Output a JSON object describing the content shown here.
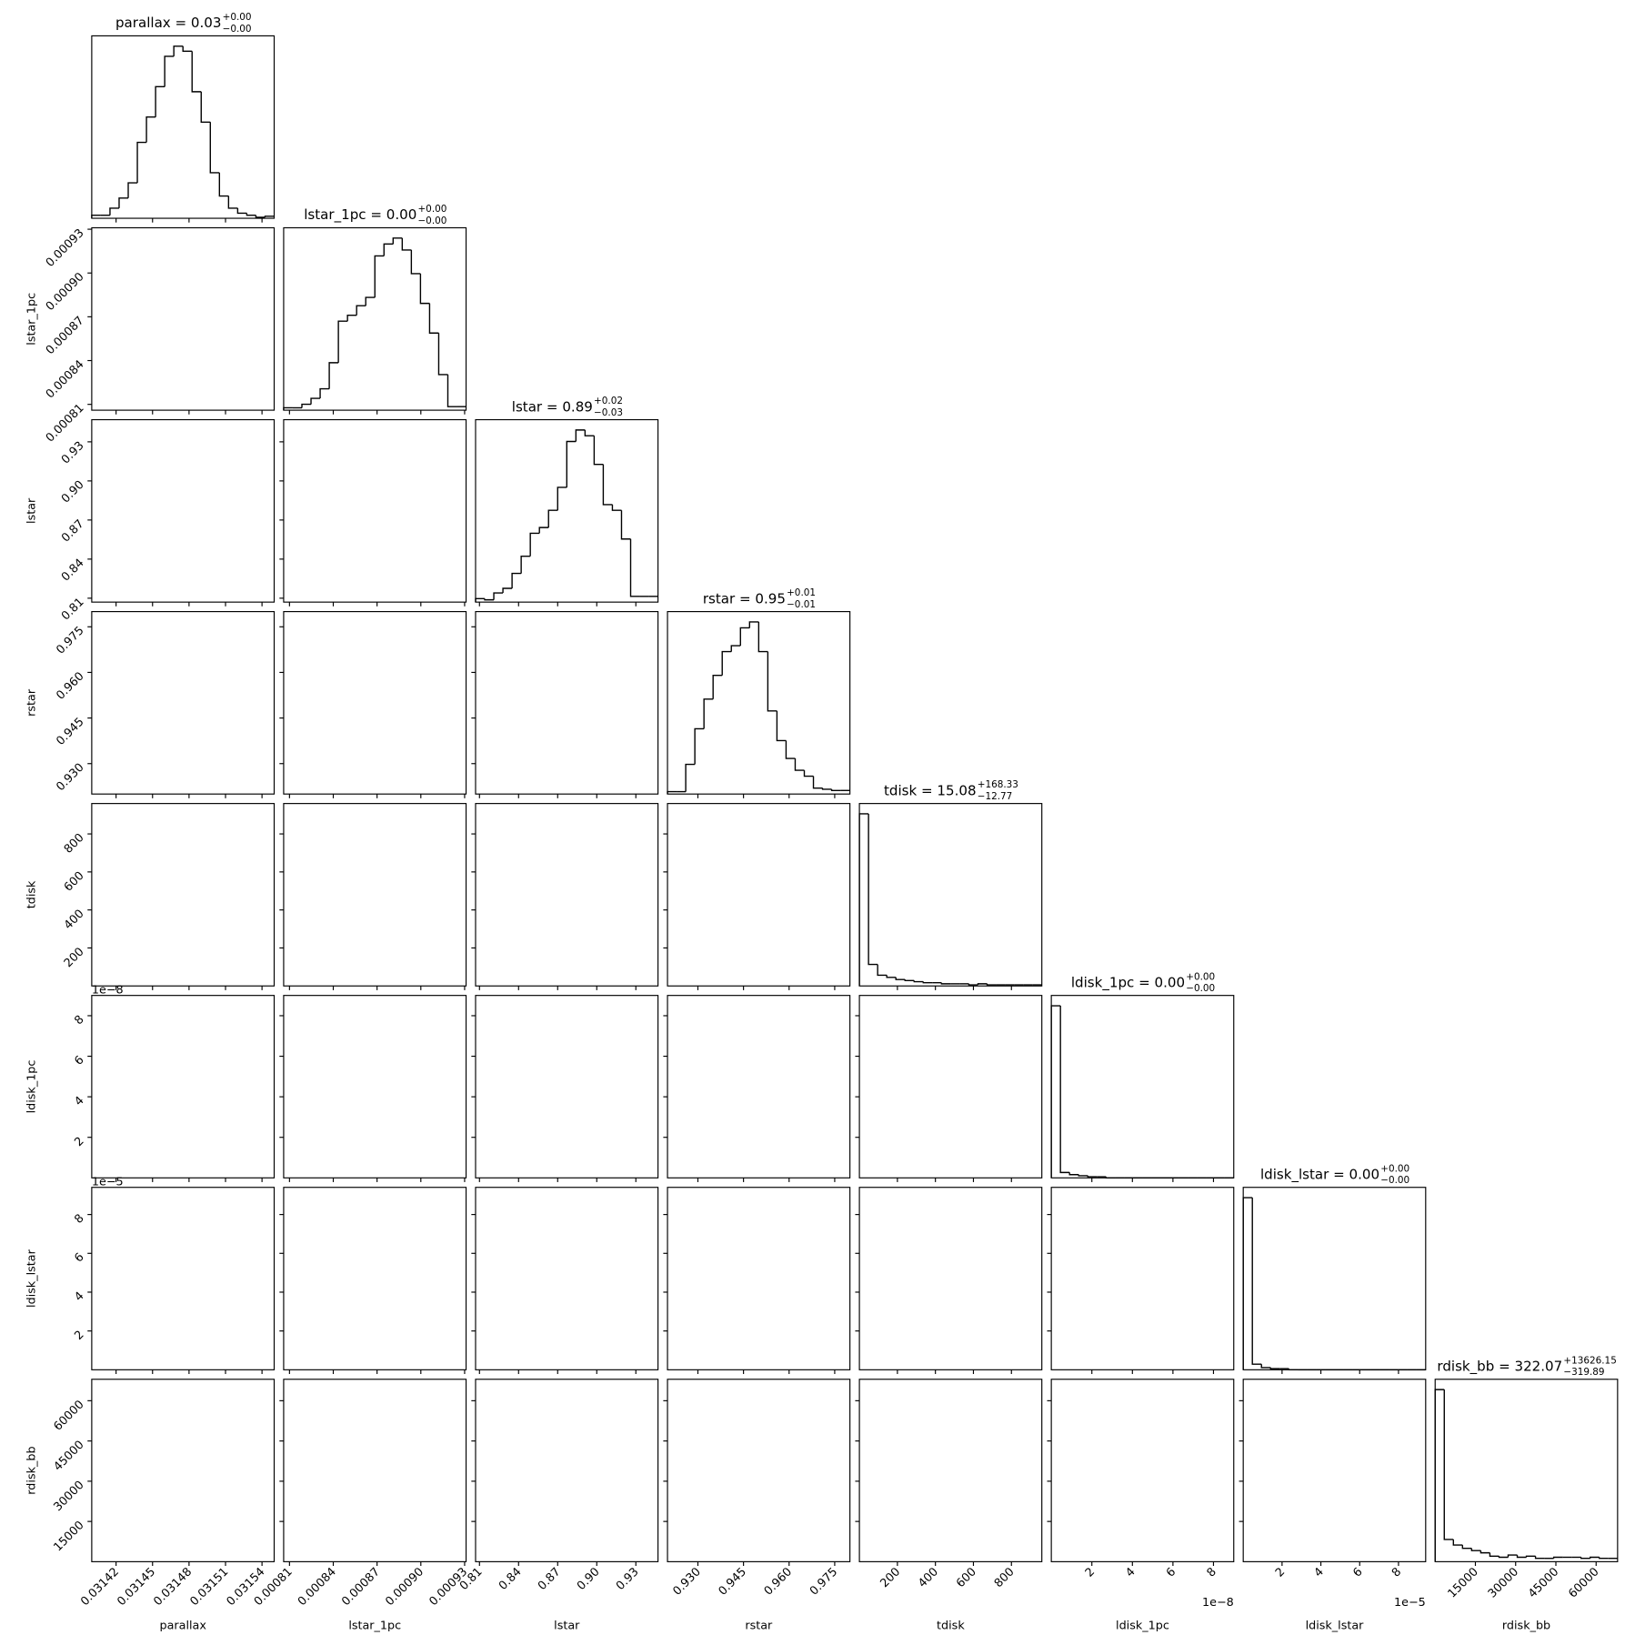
{
  "chart_data": {
    "type": "corner",
    "params": [
      {
        "name": "parallax",
        "title": "parallax = 0.03",
        "title_upper": "+0.00",
        "title_lower": "−0.00",
        "xlim": [
          0.0314,
          0.03155
        ],
        "xticks": [
          0.03142,
          0.03145,
          0.03148,
          0.03151,
          0.03154
        ],
        "bins": [
          0.0314,
          0.0314075,
          0.031415,
          0.0314225,
          0.03143,
          0.0314375,
          0.031445,
          0.0314525,
          0.03146,
          0.0314675,
          0.031475,
          0.0314825,
          0.03149,
          0.0314975,
          0.031505,
          0.0315125,
          0.03152,
          0.0315275,
          0.031535,
          0.0315425,
          0.03155
        ],
        "counts": [
          3,
          3,
          10,
          20,
          35,
          75,
          100,
          130,
          160,
          170,
          165,
          125,
          95,
          45,
          22,
          10,
          5,
          3,
          1,
          2
        ]
      },
      {
        "name": "lstar_1pc",
        "title": "lstar_1pc = 0.00",
        "title_upper": "+0.00",
        "title_lower": "−0.00",
        "xlim": [
          0.000806,
          0.000931
        ],
        "xticks": [
          0.00081,
          0.00084,
          0.00087,
          {
            "value": 0.0009,
            "label": "0.00090"
          },
          0.00093
        ],
        "bins": [
          0.000806,
          0.00081225,
          0.0008185,
          0.00082475,
          0.000831,
          0.00083725,
          0.0008435,
          0.00084975,
          0.000856,
          0.00086225,
          0.0008685,
          0.00087475,
          0.000881,
          0.00088725,
          0.0008935,
          0.00089975,
          0.000906,
          0.00091225,
          0.0009185,
          0.00092475,
          0.000931
        ],
        "counts": [
          2,
          2,
          5,
          10,
          18,
          40,
          75,
          80,
          88,
          95,
          130,
          140,
          145,
          135,
          115,
          90,
          65,
          30,
          3,
          3
        ]
      },
      {
        "name": "lstar",
        "title": "lstar = 0.89",
        "title_upper": "+0.02",
        "title_lower": "−0.03",
        "xlim": [
          0.807,
          0.947
        ],
        "xticks": [
          0.81,
          0.84,
          0.87,
          {
            "value": 0.9,
            "label": "0.90"
          },
          0.93
        ],
        "bins": [
          0.807,
          0.814,
          0.821,
          0.828,
          0.835,
          0.842,
          0.849,
          0.856,
          0.863,
          0.87,
          0.877,
          0.884,
          0.891,
          0.898,
          0.905,
          0.912,
          0.919,
          0.926,
          0.933,
          0.94,
          0.947
        ],
        "counts": [
          3,
          2,
          8,
          12,
          25,
          40,
          60,
          65,
          80,
          100,
          140,
          150,
          145,
          120,
          85,
          80,
          55,
          5,
          5,
          5
        ]
      },
      {
        "name": "rstar",
        "title": "rstar = 0.95",
        "title_upper": "+0.01",
        "title_lower": "−0.01",
        "xlim": [
          0.92,
          0.98
        ],
        "xticks": [
          {
            "value": 0.93,
            "label": "0.930"
          },
          0.945,
          {
            "value": 0.96,
            "label": "0.960"
          },
          0.975
        ],
        "bins": [
          0.92,
          0.923,
          0.926,
          0.929,
          0.932,
          0.935,
          0.938,
          0.941,
          0.944,
          0.947,
          0.95,
          0.953,
          0.956,
          0.959,
          0.962,
          0.965,
          0.968,
          0.971,
          0.974,
          0.977,
          0.98
        ],
        "counts": [
          2,
          2,
          25,
          55,
          80,
          100,
          120,
          125,
          140,
          145,
          120,
          70,
          45,
          30,
          20,
          15,
          5,
          4,
          3,
          3
        ]
      },
      {
        "name": "tdisk",
        "title": "tdisk = 15.08",
        "title_upper": "+168.33",
        "title_lower": "−12.77",
        "xlim": [
          0,
          960
        ],
        "xticks": [
          200,
          400,
          600,
          800
        ],
        "bins": [
          0,
          48,
          96,
          144,
          192,
          240,
          288,
          336,
          384,
          432,
          480,
          528,
          576,
          624,
          672,
          720,
          768,
          816,
          864,
          912,
          960
        ],
        "counts": [
          160,
          20,
          10,
          8,
          6,
          5,
          4,
          3,
          3,
          2,
          2,
          2,
          1,
          2,
          1,
          1,
          1,
          1,
          1,
          1
        ]
      },
      {
        "name": "ldisk_1pc",
        "title": "ldisk_1pc = 0.00",
        "title_upper": "+0.00",
        "title_lower": "−0.00",
        "offset": "1e−8",
        "xlim": [
          0,
          9
        ],
        "xticks": [
          2,
          4,
          6,
          8
        ],
        "bins": [
          0,
          0.45,
          0.9,
          1.35,
          1.8,
          2.25,
          2.7,
          3.15,
          3.6,
          4.05,
          4.5,
          4.95,
          5.4,
          5.85,
          6.3,
          6.75,
          7.2,
          7.65,
          8.1,
          8.55,
          9
        ],
        "counts": [
          160,
          5,
          3,
          2,
          1,
          1,
          0,
          0,
          0,
          0,
          0,
          0,
          0,
          0,
          0,
          0,
          0,
          0,
          0,
          0
        ]
      },
      {
        "name": "ldisk_lstar",
        "title": "ldisk_lstar = 0.00",
        "title_upper": "+0.00",
        "title_lower": "−0.00",
        "offset": "1e−5",
        "xlim": [
          0,
          9.4
        ],
        "xticks": [
          2,
          4,
          6,
          8
        ],
        "bins": [
          0,
          0.47,
          0.94,
          1.41,
          1.88,
          2.35,
          2.82,
          3.29,
          3.76,
          4.23,
          4.7,
          5.17,
          5.64,
          6.11,
          6.58,
          7.05,
          7.52,
          7.99,
          8.46,
          8.93,
          9.4
        ],
        "counts": [
          155,
          5,
          2,
          1,
          1,
          0,
          0,
          0,
          0,
          0,
          0,
          0,
          0,
          0,
          0,
          0,
          0,
          0,
          0,
          0
        ]
      },
      {
        "name": "rdisk_bb",
        "title": "rdisk_bb = 322.07",
        "title_upper": "+13626.15",
        "title_lower": "−319.89",
        "xlim": [
          0,
          68000
        ],
        "xticks": [
          15000,
          30000,
          45000,
          60000
        ],
        "bins": [
          0,
          3400,
          6800,
          10200,
          13600,
          17000,
          20400,
          23800,
          27200,
          30600,
          34000,
          37400,
          40800,
          44200,
          47600,
          51000,
          54400,
          57800,
          61200,
          64600,
          68000
        ],
        "counts": [
          155,
          20,
          15,
          12,
          10,
          8,
          5,
          4,
          6,
          4,
          5,
          3,
          3,
          4,
          4,
          4,
          3,
          4,
          3,
          3
        ]
      }
    ]
  }
}
